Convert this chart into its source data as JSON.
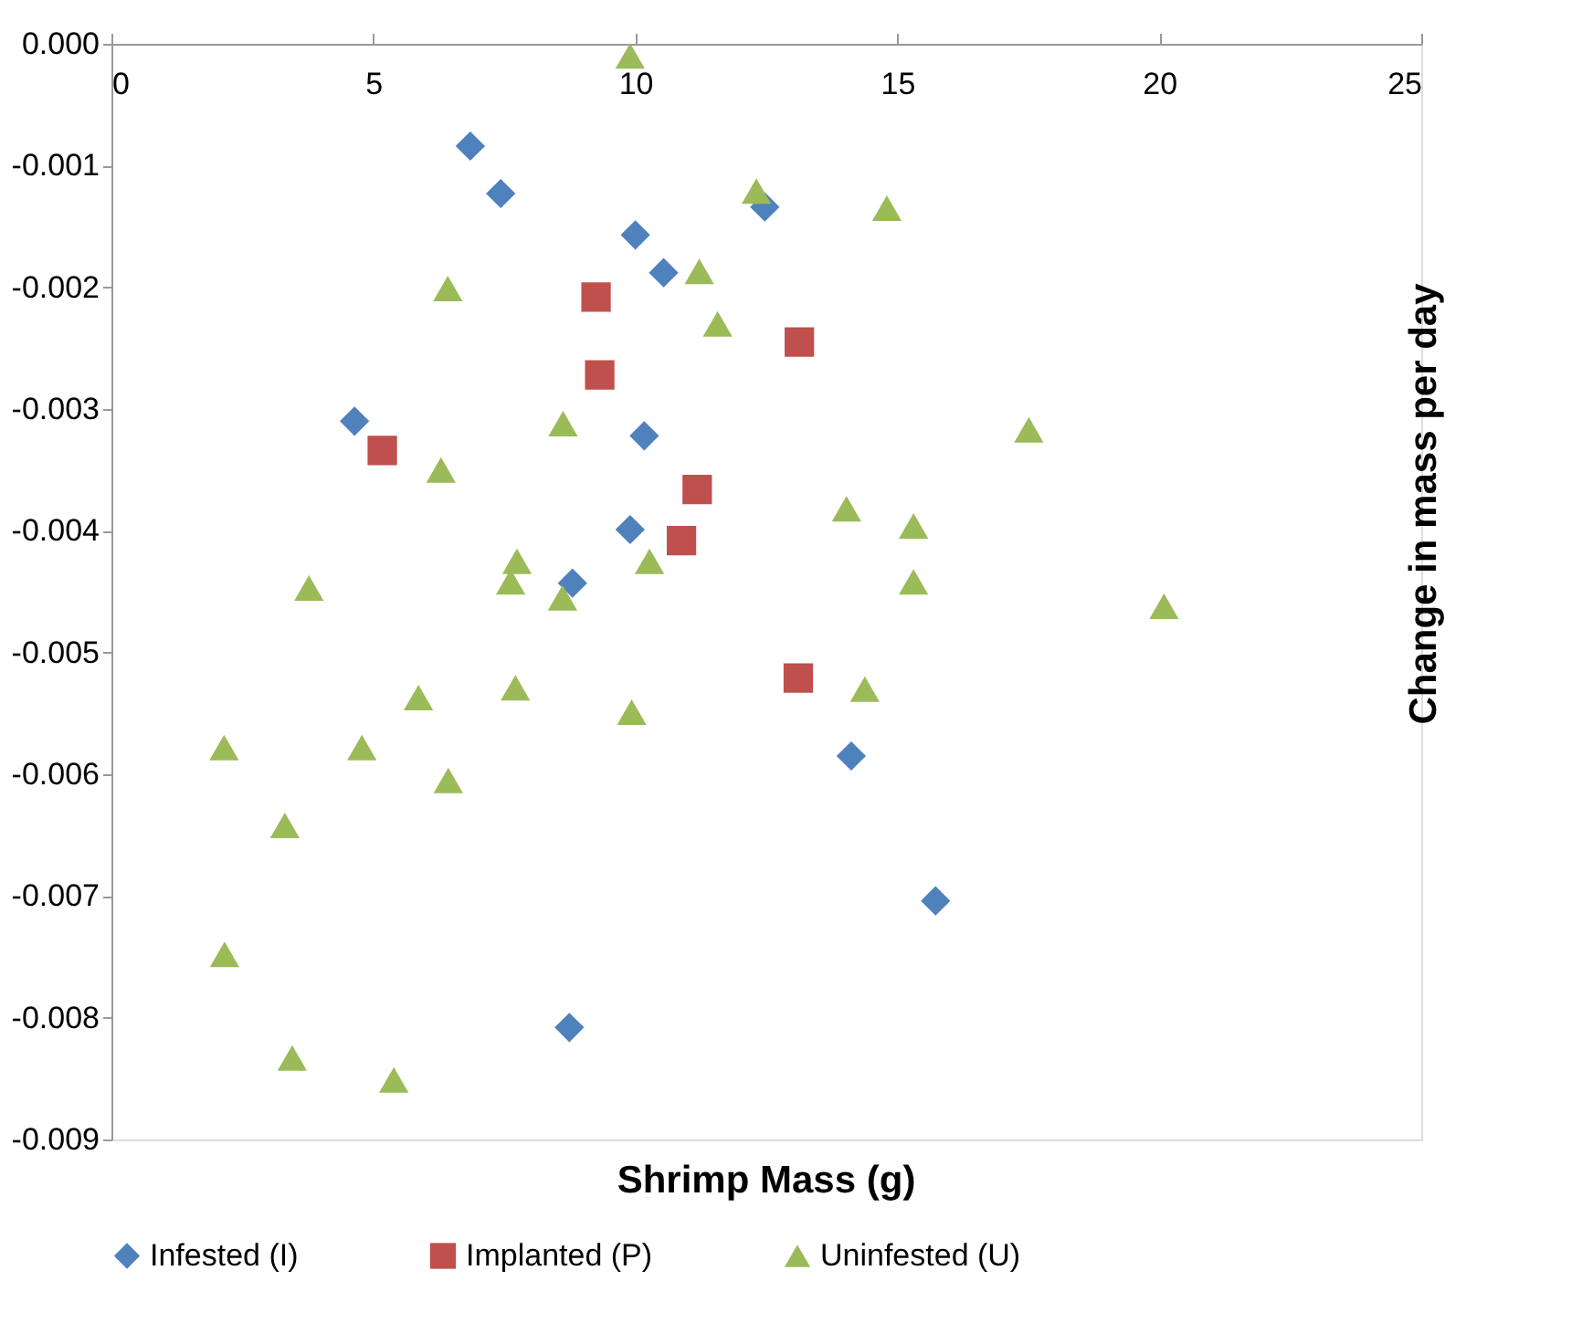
{
  "chart_data": {
    "type": "scatter",
    "xlabel": "Shrimp Mass (g)",
    "ylabel": "Change in mass per day",
    "xlim": [
      0,
      25
    ],
    "xticks": [
      0,
      5,
      10,
      15,
      20,
      25
    ],
    "ylim": [
      -0.009,
      0
    ],
    "yticks": [
      {
        "value": 0,
        "label": "0.000"
      },
      -0.001,
      -0.002,
      -0.003,
      -0.004,
      -0.005,
      -0.006,
      -0.007,
      -0.008,
      -0.009
    ],
    "grid": false,
    "legend": "bottom",
    "series": [
      {
        "name": "Infested (I)",
        "color": "#4f81bd",
        "marker": "diamond",
        "x": [
          6.85,
          7.43,
          10.0,
          10.54,
          12.47,
          4.64,
          10.17,
          9.9,
          8.8,
          14.12,
          15.73,
          8.74
        ],
        "values": [
          -0.00084,
          -0.00123,
          -0.00157,
          -0.00188,
          -0.00134,
          -0.0031,
          -0.00322,
          -0.00399,
          -0.00443,
          -0.00585,
          -0.00704,
          -0.00808
        ]
      },
      {
        "name": "Implanted (P)",
        "color": "#c0504d",
        "marker": "square",
        "x": [
          9.25,
          13.13,
          9.32,
          5.17,
          11.18,
          10.88,
          13.11
        ],
        "values": [
          -0.00208,
          -0.00245,
          -0.00272,
          -0.00334,
          -0.00366,
          -0.00408,
          -0.00521
        ]
      },
      {
        "name": "Uninfested (U)",
        "color": "#9bbb59",
        "marker": "triangle",
        "x": [
          9.9,
          12.31,
          14.8,
          6.42,
          11.22,
          11.57,
          17.51,
          8.62,
          6.29,
          14.03,
          15.31,
          7.74,
          7.62,
          10.27,
          8.61,
          3.77,
          15.31,
          20.09,
          14.38,
          7.71,
          5.86,
          9.93,
          2.15,
          4.78,
          6.43,
          3.31,
          2.16,
          3.45,
          5.39
        ],
        "values": [
          -0.0001,
          -0.00121,
          -0.00135,
          -0.00201,
          -0.00187,
          -0.0023,
          -0.00317,
          -0.00312,
          -0.0035,
          -0.00382,
          -0.00396,
          -0.00425,
          -0.00442,
          -0.00425,
          -0.00455,
          -0.00447,
          -0.00442,
          -0.00462,
          -0.0053,
          -0.00529,
          -0.00537,
          -0.00549,
          -0.00578,
          -0.00578,
          -0.00605,
          -0.00642,
          -0.00748,
          -0.00833,
          -0.00851
        ]
      }
    ]
  }
}
